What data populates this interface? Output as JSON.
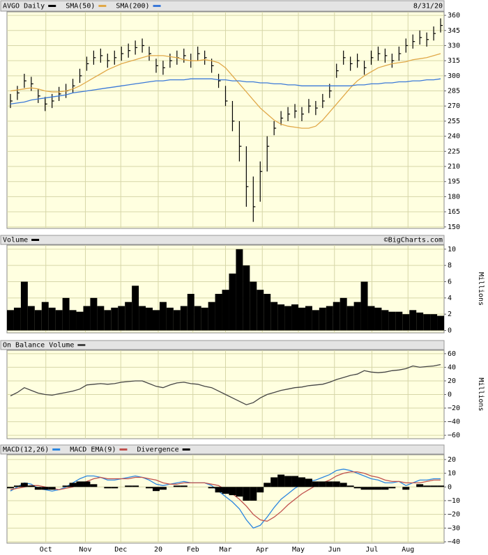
{
  "chart_data": [
    {
      "type": "hlc",
      "date": "8/31/20",
      "ylim": [
        148.5,
        363.5
      ],
      "yticks": [
        150,
        165,
        180,
        195,
        210,
        225,
        240,
        255,
        270,
        285,
        300,
        315,
        330,
        345,
        360
      ],
      "grid": true,
      "series": [
        {
          "name": "AVGO Daily",
          "type": "hlc",
          "color": "#000000",
          "high": [
            282,
            290,
            302,
            299,
            287,
            279,
            282,
            289,
            292,
            297,
            307,
            319,
            325,
            327,
            322,
            325,
            329,
            332,
            335,
            337,
            329,
            317,
            315,
            322,
            325,
            327,
            322,
            329,
            325,
            317,
            302,
            290,
            275,
            255,
            230,
            200,
            215,
            240,
            255,
            265,
            269,
            272,
            269,
            277,
            275,
            282,
            292,
            312,
            325,
            319,
            322,
            315,
            325,
            329,
            327,
            322,
            329,
            337,
            341,
            345,
            343,
            349,
            357
          ],
          "low": [
            268,
            276,
            288,
            285,
            273,
            265,
            268,
            275,
            278,
            283,
            293,
            305,
            311,
            313,
            308,
            311,
            315,
            318,
            321,
            323,
            315,
            303,
            301,
            308,
            311,
            313,
            308,
            315,
            311,
            303,
            288,
            270,
            245,
            215,
            170,
            155,
            175,
            205,
            241,
            251,
            255,
            258,
            255,
            263,
            261,
            268,
            278,
            298,
            311,
            305,
            308,
            301,
            311,
            315,
            313,
            308,
            315,
            323,
            327,
            331,
            329,
            335,
            343
          ],
          "close": [
            275,
            283,
            295,
            292,
            280,
            272,
            275,
            282,
            285,
            290,
            300,
            312,
            318,
            320,
            315,
            318,
            322,
            325,
            328,
            330,
            322,
            310,
            308,
            315,
            318,
            320,
            315,
            322,
            318,
            310,
            295,
            275,
            255,
            230,
            190,
            170,
            205,
            230,
            248,
            258,
            262,
            265,
            262,
            270,
            268,
            275,
            285,
            305,
            318,
            312,
            315,
            308,
            318,
            322,
            320,
            315,
            322,
            330,
            334,
            338,
            336,
            342,
            350
          ]
        },
        {
          "name": "SMA(50)",
          "type": "line",
          "color": "#e0a848",
          "values": [
            285,
            286,
            287,
            288,
            287,
            285,
            284,
            284,
            285,
            287,
            290,
            294,
            298,
            302,
            306,
            309,
            312,
            314,
            316,
            318,
            320,
            320,
            320,
            319,
            318,
            316,
            315,
            315,
            316,
            315,
            313,
            308,
            300,
            292,
            284,
            276,
            268,
            262,
            256,
            252,
            250,
            249,
            248,
            248,
            250,
            256,
            264,
            272,
            280,
            288,
            295,
            300,
            304,
            308,
            310,
            312,
            313,
            314,
            316,
            317,
            318,
            320,
            322
          ]
        },
        {
          "name": "SMA(200)",
          "type": "line",
          "color": "#3a78d8",
          "values": [
            272,
            273,
            274,
            276,
            277,
            278,
            279,
            280,
            281,
            283,
            284,
            285,
            286,
            287,
            288,
            289,
            290,
            291,
            292,
            293,
            294,
            295,
            295,
            296,
            296,
            296,
            297,
            297,
            297,
            297,
            296,
            296,
            295,
            295,
            294,
            294,
            293,
            293,
            292,
            292,
            291,
            291,
            290,
            290,
            290,
            290,
            290,
            290,
            290,
            290,
            291,
            291,
            292,
            292,
            293,
            293,
            294,
            294,
            295,
            295,
            296,
            296,
            297
          ]
        }
      ]
    },
    {
      "type": "bar",
      "credit": "©BigCharts.com",
      "ylabel": "Millions",
      "ylim": [
        -0.3,
        10.5
      ],
      "yticks": [
        0,
        2,
        4,
        6,
        8,
        10
      ],
      "grid": true,
      "series": [
        {
          "name": "Volume",
          "type": "bar",
          "color": "#000000",
          "values": [
            2.5,
            2.8,
            6,
            3,
            2.5,
            3.5,
            2.8,
            2.5,
            4,
            2.5,
            2.3,
            3,
            4,
            3,
            2.5,
            2.8,
            3,
            3.5,
            5.5,
            3,
            2.8,
            2.5,
            3.5,
            2.8,
            2.5,
            3,
            4.5,
            3,
            2.8,
            3.5,
            4.5,
            5,
            7,
            10,
            8,
            6,
            5,
            4.5,
            3.5,
            3.2,
            3,
            3.2,
            2.8,
            3,
            2.5,
            2.8,
            3,
            3.5,
            4,
            3,
            3.5,
            6,
            3,
            2.8,
            2.5,
            2.3,
            2.3,
            2,
            2.5,
            2.2,
            2,
            2,
            1.8
          ]
        }
      ]
    },
    {
      "type": "line",
      "ylabel": "Millions",
      "ylim": [
        -65,
        65
      ],
      "yticks": [
        60,
        40,
        20,
        0,
        {
          "value": -20,
          "label": "−20"
        },
        {
          "value": -40,
          "label": "−40"
        },
        {
          "value": -60,
          "label": "−60"
        }
      ],
      "grid": true,
      "series": [
        {
          "name": "On Balance Volume",
          "type": "line",
          "color": "#444444",
          "values": [
            -2,
            3,
            10,
            6,
            2,
            0,
            -1,
            1,
            3,
            5,
            8,
            14,
            15,
            16,
            15,
            16,
            18,
            19,
            20,
            20,
            16,
            12,
            10,
            14,
            17,
            18,
            16,
            15,
            12,
            10,
            5,
            0,
            -5,
            -10,
            -15,
            -12,
            -5,
            0,
            3,
            6,
            8,
            10,
            11,
            13,
            14,
            15,
            18,
            22,
            25,
            28,
            30,
            35,
            33,
            32,
            33,
            35,
            36,
            38,
            42,
            40,
            41,
            42,
            44
          ]
        }
      ]
    },
    {
      "type": "line",
      "ylim": [
        -41,
        23.5
      ],
      "yticks": [
        20,
        10,
        0,
        {
          "value": -10,
          "label": "−10"
        },
        {
          "value": -20,
          "label": "−20"
        },
        {
          "value": -30,
          "label": "−30"
        },
        {
          "value": -40,
          "label": "−40"
        }
      ],
      "grid": true,
      "xlim": [
        -0.5,
        62.5
      ],
      "xticks": [
        {
          "value": 5.1,
          "label": "Oct"
        },
        {
          "value": 10.8,
          "label": "Nov"
        },
        {
          "value": 15.9,
          "label": "Dec"
        },
        {
          "value": 21.3,
          "label": "20"
        },
        {
          "value": 26.3,
          "label": "Feb"
        },
        {
          "value": 31.0,
          "label": "Mar"
        },
        {
          "value": 36.3,
          "label": "Apr"
        },
        {
          "value": 41.5,
          "label": "May"
        },
        {
          "value": 46.7,
          "label": "Jun"
        },
        {
          "value": 52.1,
          "label": "Jul"
        },
        {
          "value": 57.3,
          "label": "Aug"
        }
      ],
      "series": [
        {
          "name": "MACD(12,26)",
          "type": "line",
          "color": "#2a86e0",
          "values": [
            -3,
            0,
            3,
            2,
            -1,
            -2,
            -3,
            -2,
            0,
            3,
            6,
            8,
            8,
            7,
            5,
            5,
            6,
            7,
            8,
            7,
            5,
            2,
            1,
            2,
            3,
            4,
            3,
            3,
            3,
            1,
            -3,
            -7,
            -11,
            -16,
            -24,
            -30,
            -28,
            -22,
            -15,
            -9,
            -5,
            -1,
            2,
            4,
            5,
            7,
            9,
            12,
            13,
            12,
            10,
            8,
            6,
            5,
            3,
            3,
            4,
            1,
            3,
            5,
            5,
            6,
            6
          ]
        },
        {
          "name": "MACD EMA(9)",
          "type": "line",
          "color": "#c0504d",
          "values": [
            -2,
            -1,
            0,
            1,
            1,
            0,
            -1,
            -2,
            -1,
            0,
            2,
            4,
            6,
            7,
            6,
            6,
            6,
            6,
            7,
            7,
            6,
            5,
            3,
            2,
            2,
            3,
            3,
            3,
            3,
            2,
            1,
            -2,
            -5,
            -9,
            -14,
            -20,
            -24,
            -25,
            -22,
            -18,
            -13,
            -9,
            -5,
            -2,
            1,
            3,
            5,
            8,
            10,
            11,
            11,
            10,
            8,
            7,
            5,
            4,
            4,
            3,
            3,
            3,
            4,
            5,
            5
          ]
        },
        {
          "name": "Divergence",
          "type": "bar",
          "color": "#000000",
          "values": [
            -1,
            1,
            3,
            1,
            -2,
            -2,
            -2,
            0,
            1,
            3,
            4,
            4,
            2,
            0,
            -1,
            -1,
            0,
            1,
            1,
            0,
            -1,
            -3,
            -2,
            0,
            1,
            1,
            0,
            0,
            0,
            -1,
            -4,
            -5,
            -6,
            -7,
            -10,
            -10,
            -4,
            3,
            7,
            9,
            8,
            8,
            7,
            6,
            4,
            4,
            4,
            4,
            3,
            1,
            -1,
            -2,
            -2,
            -2,
            -2,
            -1,
            0,
            -2,
            0,
            2,
            1,
            1,
            1
          ]
        }
      ]
    }
  ]
}
